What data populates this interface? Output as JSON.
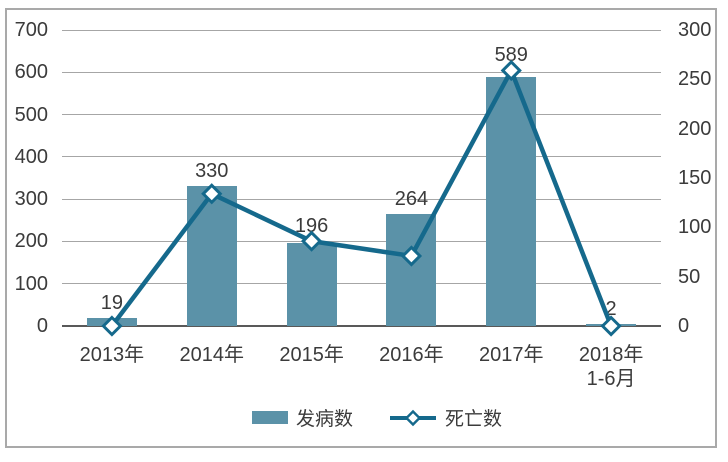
{
  "chart_data": {
    "type": "combo-bar-line",
    "categories": [
      [
        "2013年"
      ],
      [
        "2014年"
      ],
      [
        "2015年"
      ],
      [
        "2016年"
      ],
      [
        "2017年"
      ],
      [
        "2018年",
        "1-6月"
      ]
    ],
    "series": [
      {
        "name": "发病数",
        "type": "bar",
        "axis": "left",
        "color": "#5b92a8",
        "values": [
          19,
          330,
          196,
          264,
          589,
          2
        ],
        "data_labels": [
          "19",
          "330",
          "196",
          "264",
          "589",
          "2"
        ]
      },
      {
        "name": "死亡数",
        "type": "line",
        "axis": "right",
        "color": "#15698c",
        "marker": "diamond",
        "marker_fill": "#ffffff",
        "values": [
          0,
          134,
          86,
          71,
          259,
          0
        ]
      }
    ],
    "left_axis": {
      "min": 0,
      "max": 700,
      "step": 100,
      "ticks": [
        "0",
        "100",
        "200",
        "300",
        "400",
        "500",
        "600",
        "700"
      ]
    },
    "right_axis": {
      "min": 0,
      "max": 300,
      "step": 50,
      "ticks": [
        "0",
        "50",
        "100",
        "150",
        "200",
        "250",
        "300"
      ]
    },
    "grid": true,
    "legend_position": "bottom",
    "title": ""
  },
  "style": {
    "background": "#ffffff",
    "border_color": "#a9a9a9",
    "grid_color": "#a6a6a6",
    "axis_color": "#595959",
    "text_color": "#3b3b3b"
  }
}
